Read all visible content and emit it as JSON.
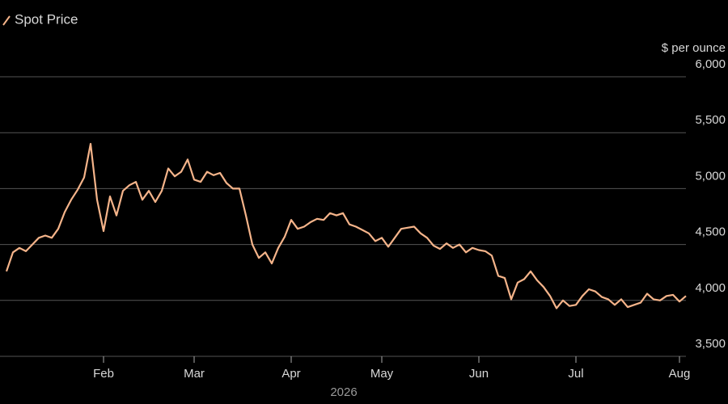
{
  "chart_data": {
    "type": "line",
    "y_label": "$ per ounce",
    "x_label": "2026",
    "categories": [
      null,
      null,
      null,
      null,
      null,
      null,
      null,
      null,
      null,
      null,
      null,
      null,
      null,
      null,
      null,
      "Feb",
      null,
      null,
      null,
      null,
      null,
      null,
      null,
      null,
      null,
      null,
      null,
      null,
      null,
      "Mar",
      null,
      null,
      null,
      null,
      null,
      null,
      null,
      null,
      null,
      null,
      null,
      null,
      null,
      null,
      "Apr",
      null,
      null,
      null,
      null,
      null,
      null,
      null,
      null,
      null,
      null,
      null,
      null,
      null,
      "May",
      null,
      null,
      null,
      null,
      null,
      null,
      null,
      null,
      null,
      null,
      null,
      null,
      null,
      null,
      "Jun",
      null,
      null,
      null,
      null,
      null,
      null,
      null,
      null,
      null,
      null,
      null,
      null,
      null,
      null,
      "Jul",
      null,
      null,
      null,
      null,
      null,
      null,
      null,
      null,
      null,
      null,
      null,
      null,
      null,
      null,
      null,
      "Aug",
      null
    ],
    "series": [
      {
        "name": "Spot Price",
        "color": "#f5b48a",
        "values": [
          4260,
          4430,
          4470,
          4440,
          4500,
          4560,
          4580,
          4560,
          4640,
          4790,
          4900,
          4990,
          5100,
          5400,
          4900,
          4620,
          4930,
          4760,
          4980,
          5030,
          5060,
          4900,
          4980,
          4880,
          4980,
          5180,
          5110,
          5150,
          5260,
          5080,
          5060,
          5150,
          5120,
          5140,
          5050,
          5000,
          5000,
          4760,
          4500,
          4380,
          4430,
          4330,
          4470,
          4570,
          4720,
          4640,
          4660,
          4700,
          4730,
          4720,
          4780,
          4760,
          4780,
          4680,
          4660,
          4630,
          4600,
          4530,
          4560,
          4480,
          4560,
          4640,
          4650,
          4660,
          4600,
          4560,
          4490,
          4460,
          4510,
          4470,
          4500,
          4430,
          4470,
          4450,
          4440,
          4400,
          4220,
          4200,
          4010,
          4160,
          4190,
          4260,
          4180,
          4120,
          4040,
          3930,
          4000,
          3950,
          3960,
          4040,
          4100,
          4080,
          4030,
          4010,
          3960,
          4010,
          3940,
          3960,
          3980,
          4060,
          4010,
          4000,
          4040,
          4050,
          3990,
          4040
        ]
      }
    ],
    "ylim": [
      3500,
      6000
    ],
    "yticks": [
      {
        "value": 3500,
        "label": "3,500"
      },
      {
        "value": 4000,
        "label": "4,000"
      },
      {
        "value": 4500,
        "label": "4,500"
      },
      {
        "value": 5000,
        "label": "5,000"
      },
      {
        "value": 5500,
        "label": "5,500"
      },
      {
        "value": 6000,
        "label": "6,000"
      }
    ],
    "grid": true
  }
}
